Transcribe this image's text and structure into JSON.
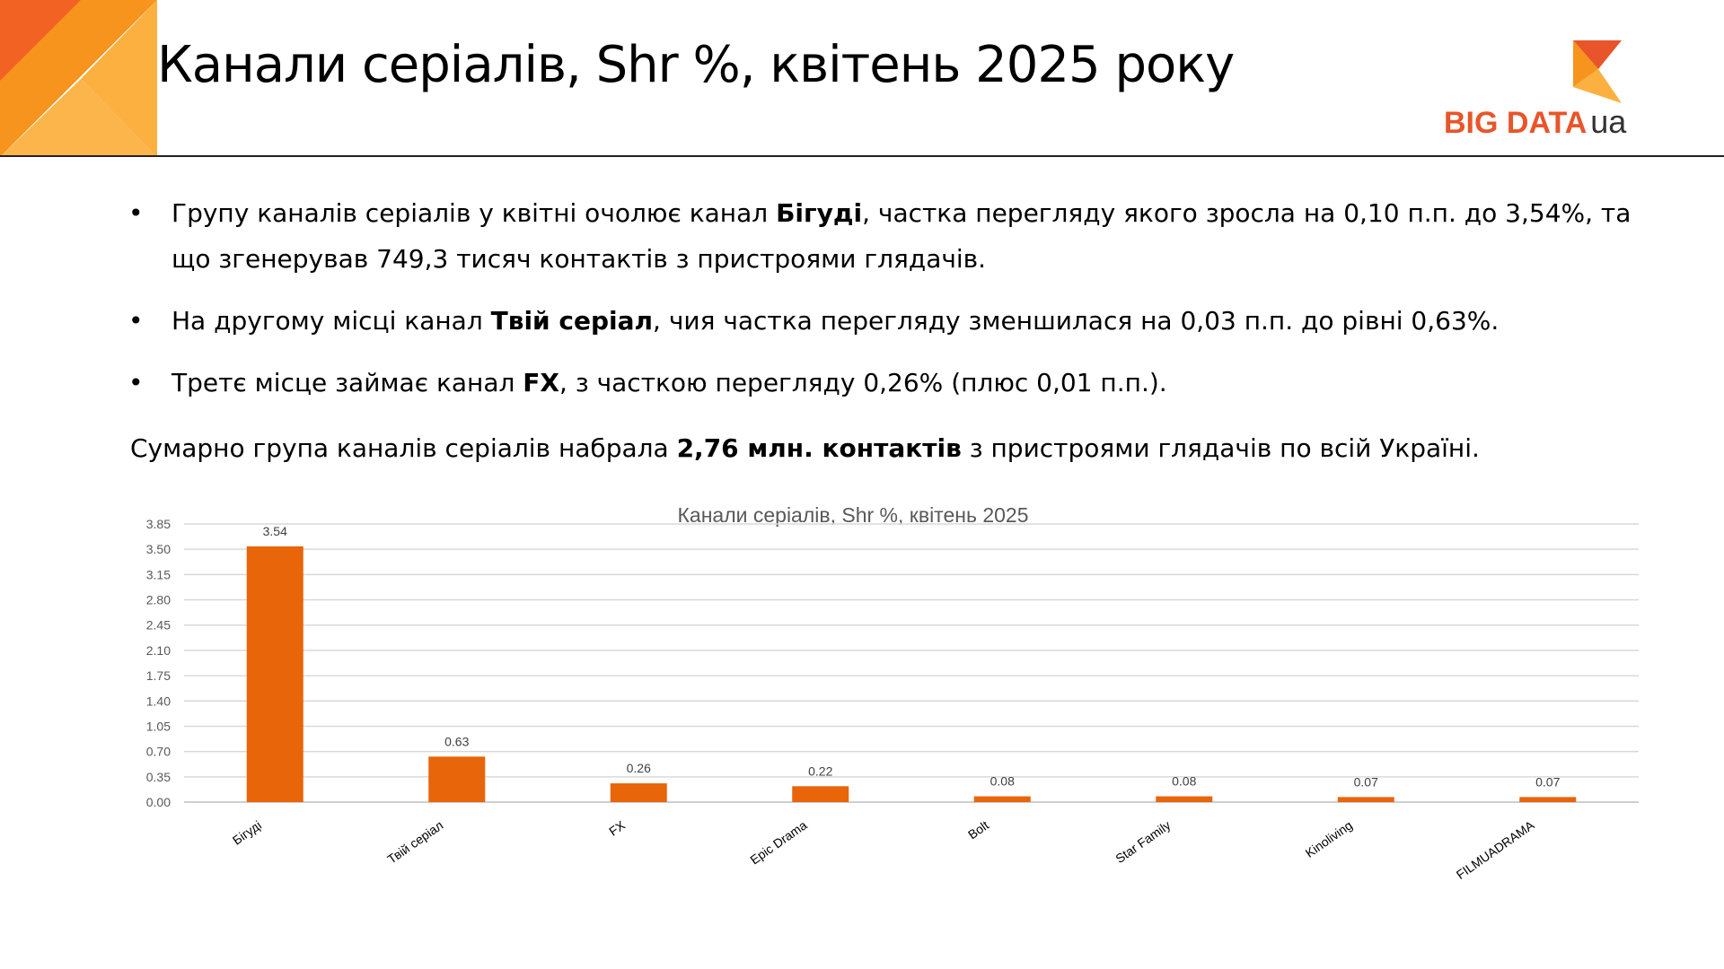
{
  "header": {
    "title": "Канали серіалів, Shr %, квітень 2025 року",
    "logo_text": "BIG DATA",
    "logo_suffix": "ua",
    "brand_colors": [
      "#e8552a",
      "#f7941d",
      "#fbb040"
    ]
  },
  "bullets": [
    {
      "parts": [
        {
          "text": "Групу каналів серіалів у квітні очолює канал ",
          "bold": false
        },
        {
          "text": "Бігуді",
          "bold": true
        },
        {
          "text": ", частка перегляду якого зросла на 0,10 п.п. до 3,54%, та що згенерував 749,3  тисяч контактів з пристроями глядачів.",
          "bold": false
        }
      ]
    },
    {
      "parts": [
        {
          "text": "На другому місці канал ",
          "bold": false
        },
        {
          "text": "Твій серіал",
          "bold": true
        },
        {
          "text": ", чия частка перегляду зменшилася на 0,03 п.п. до рівні 0,63%.",
          "bold": false
        }
      ]
    },
    {
      "parts": [
        {
          "text": "Третє місце займає канал  ",
          "bold": false
        },
        {
          "text": "FX",
          "bold": true
        },
        {
          "text": ", з часткою перегляду 0,26% (плюс 0,01 п.п.).",
          "bold": false
        }
      ]
    }
  ],
  "summary": {
    "parts": [
      {
        "text": "Сумарно група каналів серіалів набрала ",
        "bold": false
      },
      {
        "text": "2,76 млн. контактів",
        "bold": true
      },
      {
        "text": " з пристроями глядачів по всій Україні.",
        "bold": false
      }
    ]
  },
  "chart_data": {
    "type": "bar",
    "title": "Канали серіалів, Shr %, квітень 2025",
    "categories": [
      "Бігуді",
      "Твій серіал",
      "FX",
      "Epic Drama",
      "Bolt",
      "Star Family",
      "Kinoliving",
      "FILMUADRAMA"
    ],
    "values": [
      3.54,
      0.63,
      0.26,
      0.22,
      0.08,
      0.08,
      0.07,
      0.07
    ],
    "data_labels": [
      "3.54",
      "0.63",
      "0.26",
      "0.22",
      "0.08",
      "0.08",
      "0.07",
      "0.07"
    ],
    "y_ticks": [
      "0.00",
      "0.35",
      "0.70",
      "1.05",
      "1.40",
      "1.75",
      "2.10",
      "2.45",
      "2.80",
      "3.15",
      "3.50",
      "3.85"
    ],
    "ylim": [
      0,
      3.85
    ],
    "grid": true,
    "legend": false,
    "bar_color": "#e8650a"
  }
}
